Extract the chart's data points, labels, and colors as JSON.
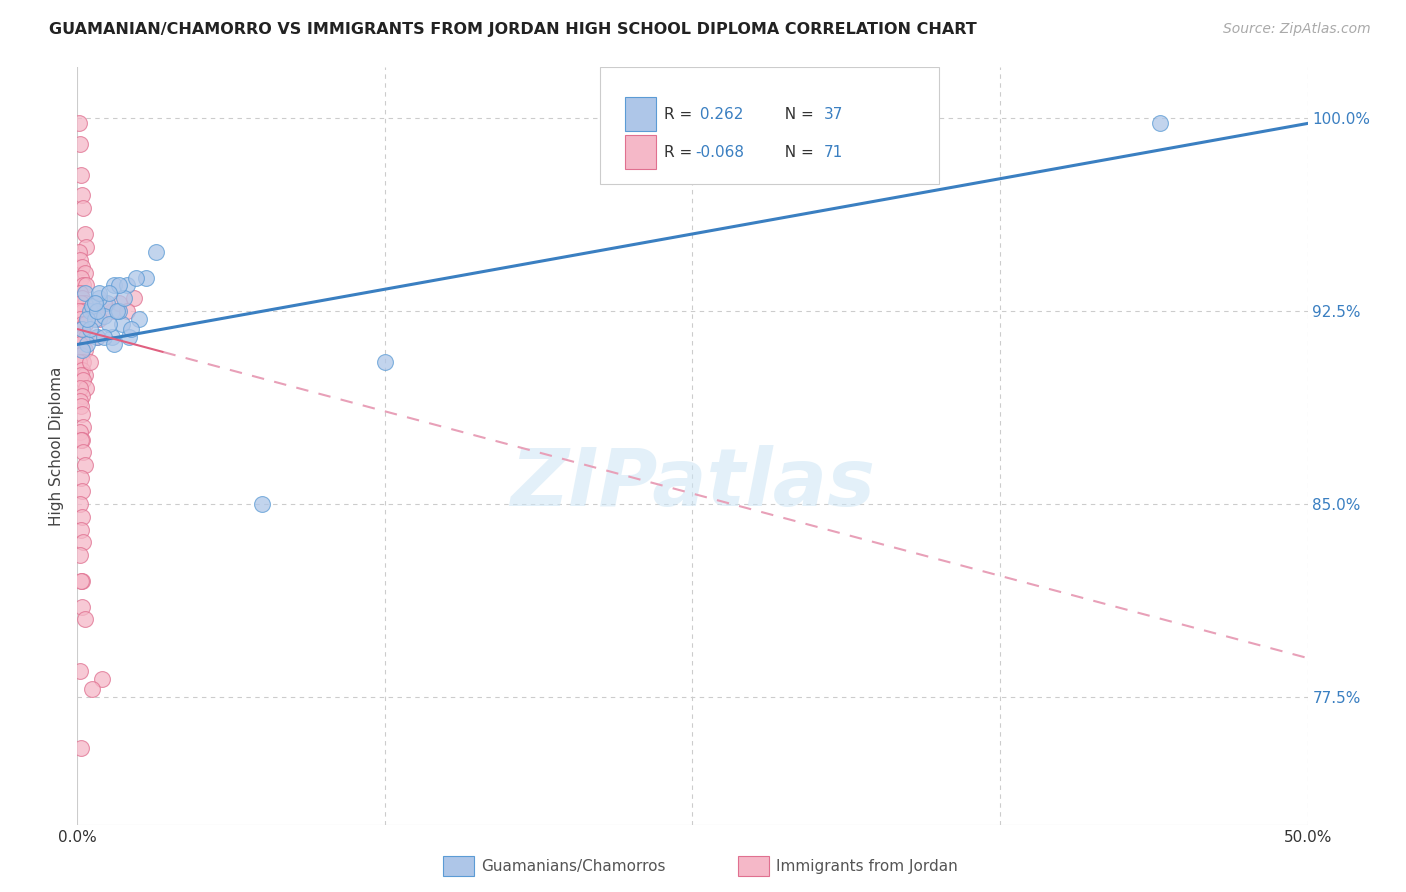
{
  "title": "GUAMANIAN/CHAMORRO VS IMMIGRANTS FROM JORDAN HIGH SCHOOL DIPLOMA CORRELATION CHART",
  "source": "Source: ZipAtlas.com",
  "ylabel": "High School Diploma",
  "xlim": [
    0.0,
    50.0
  ],
  "ylim": [
    72.5,
    102.0
  ],
  "yticks": [
    77.5,
    85.0,
    92.5,
    100.0
  ],
  "xtick_labels": [
    "0.0%",
    "",
    "",
    "",
    "50.0%"
  ],
  "ytick_labels": [
    "77.5%",
    "85.0%",
    "92.5%",
    "100.0%"
  ],
  "blue_R": 0.262,
  "blue_N": 37,
  "pink_R": -0.068,
  "pink_N": 71,
  "blue_color": "#aec6e8",
  "pink_color": "#f5b8c8",
  "blue_edge_color": "#5b9bd5",
  "pink_edge_color": "#e07090",
  "blue_line_color": "#3a7fc1",
  "pink_line_color": "#e06080",
  "pink_dash_color": "#e8a0b8",
  "grid_color": "#cccccc",
  "watermark": "ZIPatlas",
  "legend_label_blue": "Guamanians/Chamorros",
  "legend_label_pink": "Immigrants from Jordan",
  "blue_scatter_x": [
    0.3,
    0.5,
    2.8,
    0.8,
    1.5,
    0.2,
    1.2,
    0.7,
    1.8,
    0.9,
    1.4,
    0.6,
    2.0,
    1.1,
    1.7,
    0.4,
    1.3,
    2.5,
    0.5,
    0.9,
    2.1,
    1.6,
    3.2,
    1.9,
    0.2,
    1.7,
    0.4,
    1.1,
    2.4,
    0.8,
    1.3,
    2.2,
    0.7,
    1.5,
    7.5,
    44.0,
    12.5
  ],
  "blue_scatter_y": [
    93.2,
    92.5,
    93.8,
    91.5,
    93.5,
    91.8,
    92.8,
    92.2,
    92.0,
    93.0,
    91.5,
    92.7,
    93.5,
    92.3,
    92.5,
    91.2,
    92.0,
    92.2,
    91.8,
    93.2,
    91.5,
    92.5,
    94.8,
    93.0,
    91.0,
    93.5,
    92.2,
    91.5,
    93.8,
    92.5,
    93.2,
    91.8,
    92.8,
    91.2,
    85.0,
    99.8,
    90.5
  ],
  "pink_scatter_x": [
    0.05,
    0.1,
    0.15,
    0.2,
    0.25,
    0.3,
    0.35,
    0.05,
    0.1,
    0.2,
    0.3,
    0.15,
    0.25,
    0.35,
    0.1,
    0.2,
    0.3,
    0.15,
    0.25,
    0.05,
    0.1,
    0.2,
    0.3,
    0.15,
    0.25,
    0.35,
    0.1,
    0.2,
    0.3,
    0.15,
    0.25,
    0.05,
    0.2,
    0.3,
    0.15,
    0.25,
    0.35,
    0.1,
    0.2,
    0.1,
    0.15,
    0.2,
    0.25,
    0.1,
    0.2,
    0.15,
    0.25,
    0.3,
    0.15,
    0.2,
    0.1,
    0.2,
    0.15,
    0.25,
    0.1,
    0.2,
    0.15,
    0.2,
    0.3,
    0.1,
    0.15,
    1.4,
    1.7,
    2.3,
    1.1,
    0.8,
    0.9,
    2.0,
    0.5,
    1.0,
    0.6
  ],
  "pink_scatter_y": [
    99.8,
    99.0,
    97.8,
    97.0,
    96.5,
    95.5,
    95.0,
    94.8,
    94.5,
    94.2,
    94.0,
    93.8,
    93.5,
    93.5,
    93.2,
    93.0,
    92.8,
    92.8,
    92.5,
    92.5,
    92.2,
    92.0,
    92.0,
    91.8,
    91.5,
    91.5,
    91.2,
    91.0,
    91.0,
    90.8,
    90.5,
    90.5,
    90.2,
    90.0,
    90.0,
    89.8,
    89.5,
    89.5,
    89.2,
    89.0,
    88.8,
    88.5,
    88.0,
    87.8,
    87.5,
    87.5,
    87.0,
    86.5,
    86.0,
    85.5,
    85.0,
    84.5,
    84.0,
    83.5,
    83.0,
    82.0,
    82.0,
    81.0,
    80.5,
    78.5,
    75.5,
    92.5,
    92.8,
    93.0,
    92.8,
    91.5,
    92.2,
    92.5,
    90.5,
    78.2,
    77.8
  ]
}
